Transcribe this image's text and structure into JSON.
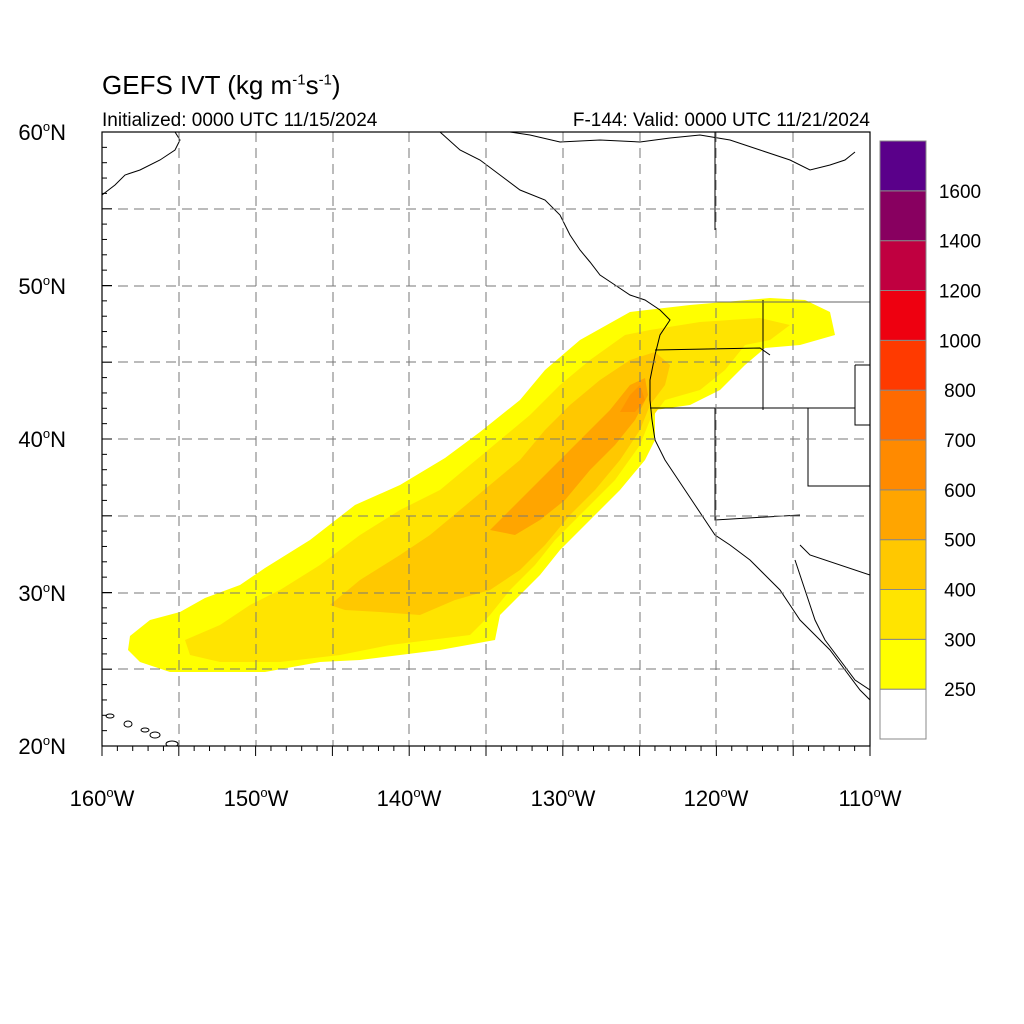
{
  "title": {
    "prefix": "GEFS IVT (kg m",
    "exp1": "-1",
    "mid": "s",
    "exp2": "-1",
    "suffix": ")"
  },
  "subtitle_left": "Initialized: 0000 UTC 11/15/2024",
  "subtitle_right": "F-144: Valid: 0000 UTC 11/21/2024",
  "map": {
    "lon_range": [
      -160,
      -110
    ],
    "lat_range": [
      20,
      60
    ],
    "lat_labels": [
      "20",
      "30",
      "40",
      "50",
      "60"
    ],
    "lon_labels": [
      "160",
      "150",
      "140",
      "130",
      "120",
      "110"
    ],
    "lat_hemisphere": "N",
    "lon_hemisphere": "W",
    "grid_style": "dashed, every 5 degrees",
    "ivt_plume": {
      "description_levels": [
        "250",
        "300",
        "400",
        "500",
        "600"
      ],
      "orientation": "southwest to northeast, from Hawaii toward Pacific Northwest"
    }
  },
  "colorbar": {
    "levels": [
      "250",
      "300",
      "400",
      "500",
      "600",
      "700",
      "800",
      "1000",
      "1200",
      "1400",
      "1600"
    ],
    "colors": [
      "#ffffff",
      "#ffff00",
      "#ffe400",
      "#ffc800",
      "#ffa500",
      "#ff8a00",
      "#ff6a00",
      "#ff3a00",
      "#ee0010",
      "#c00040",
      "#880060",
      "#5a008a"
    ]
  }
}
